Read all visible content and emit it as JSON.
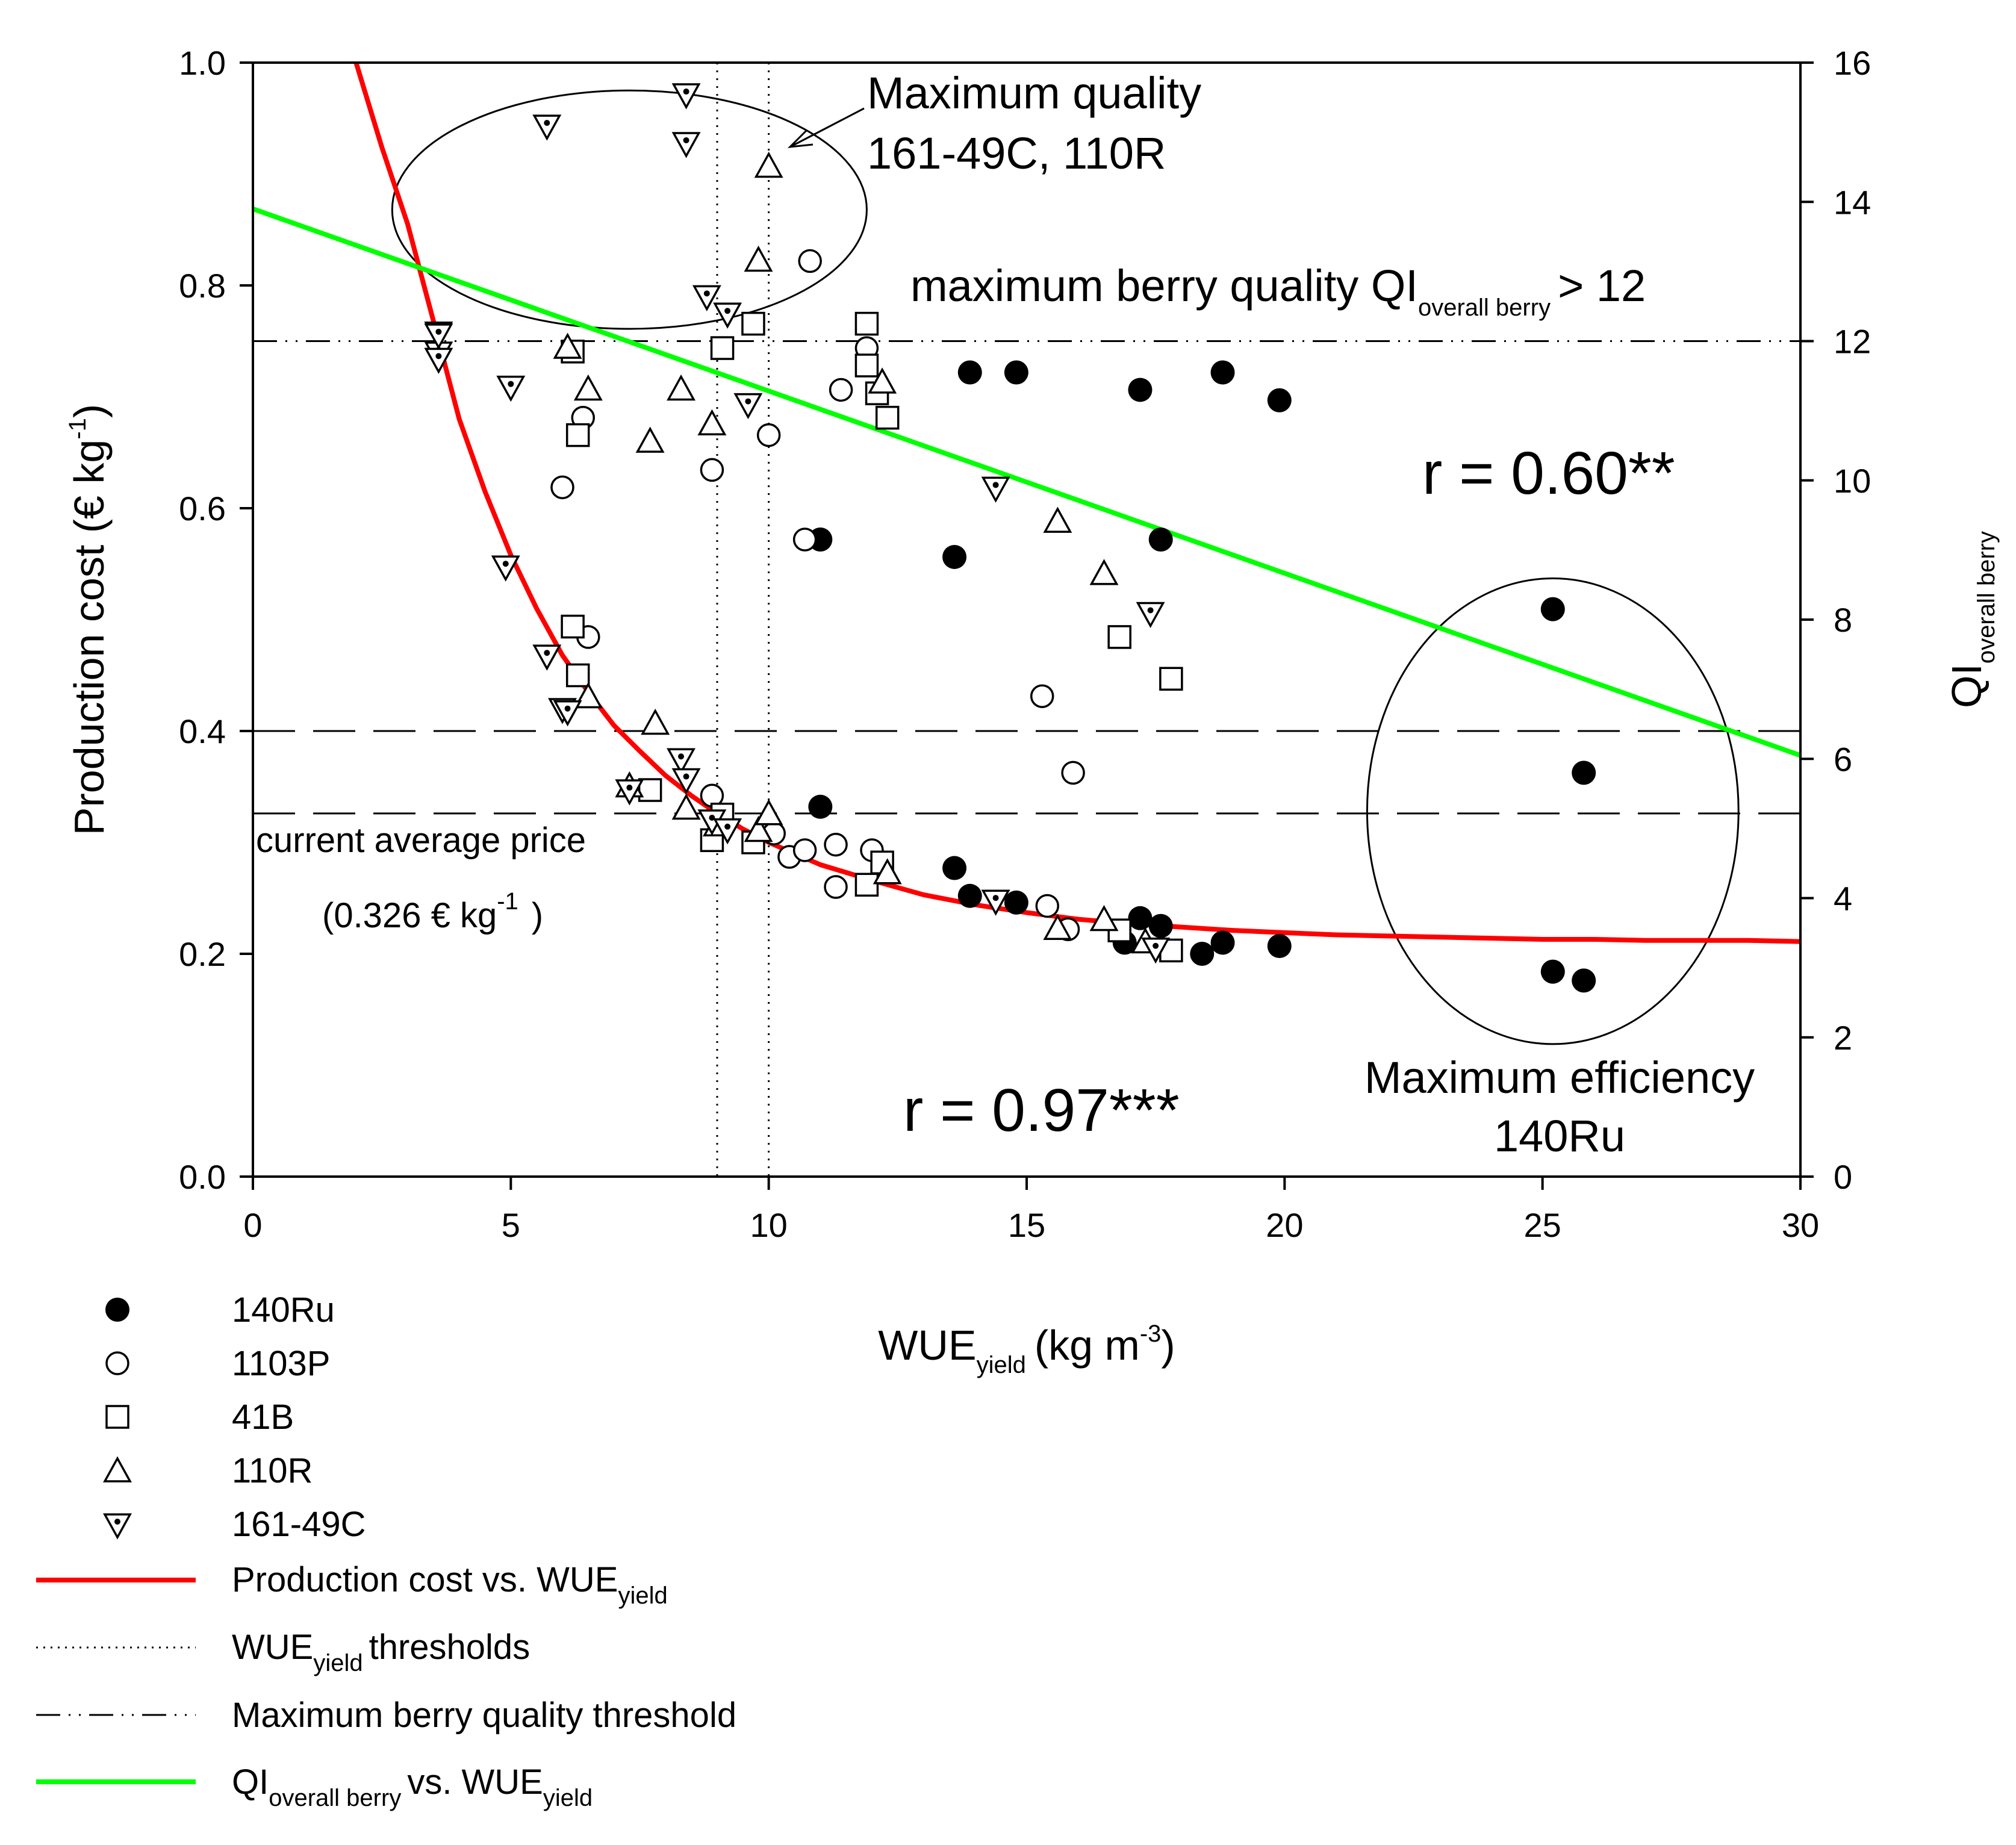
{
  "chart_data": {
    "type": "scatter",
    "x_axis": {
      "label_main": "WUE",
      "label_sub": "yield",
      "label_tail": "(kg m",
      "label_sup": "-3",
      "label_close": ")",
      "range": [
        0,
        30
      ],
      "ticks": [
        "0",
        "5",
        "10",
        "15",
        "20",
        "25",
        "30"
      ]
    },
    "y_axis_left": {
      "label_main": "Production cost (€ kg",
      "label_sup": "-1",
      "label_close": ")",
      "range": [
        0,
        1
      ],
      "ticks": [
        "0.0",
        "0.2",
        "0.4",
        "0.6",
        "0.8",
        "1.0"
      ]
    },
    "y_axis_right": {
      "label_main": "QI",
      "label_sub": "overall berry",
      "range": [
        0,
        16
      ],
      "ticks": [
        "0",
        "2",
        "4",
        "6",
        "8",
        "10",
        "12",
        "14",
        "16"
      ]
    },
    "series": [
      {
        "name": "140Ru",
        "marker": "filled-circle",
        "cost": [
          [
            11.0,
            0.332
          ],
          [
            13.6,
            0.277
          ],
          [
            13.9,
            0.252
          ],
          [
            14.8,
            0.246
          ],
          [
            16.9,
            0.21
          ],
          [
            17.2,
            0.232
          ],
          [
            17.6,
            0.225
          ],
          [
            18.4,
            0.2
          ],
          [
            18.8,
            0.21
          ],
          [
            19.9,
            0.207
          ],
          [
            25.2,
            0.184
          ],
          [
            25.8,
            0.176
          ]
        ],
        "qi": [
          [
            11.0,
            9.15
          ],
          [
            13.6,
            8.9
          ],
          [
            13.9,
            11.55
          ],
          [
            14.8,
            11.55
          ],
          [
            17.2,
            11.3
          ],
          [
            17.6,
            9.15
          ],
          [
            18.8,
            11.55
          ],
          [
            19.9,
            11.15
          ],
          [
            25.2,
            8.15
          ],
          [
            25.8,
            5.8
          ]
        ]
      },
      {
        "name": "1103P",
        "marker": "open-circle",
        "cost": [
          [
            8.9,
            0.342
          ],
          [
            10.1,
            0.308
          ],
          [
            10.4,
            0.287
          ],
          [
            10.7,
            0.293
          ],
          [
            11.3,
            0.298
          ],
          [
            11.3,
            0.26
          ],
          [
            12.0,
            0.293
          ],
          [
            15.4,
            0.243
          ],
          [
            15.8,
            0.222
          ]
        ],
        "qi": [
          [
            6.0,
            9.9
          ],
          [
            6.4,
            10.9
          ],
          [
            6.5,
            7.75
          ],
          [
            8.9,
            10.15
          ],
          [
            10.0,
            10.65
          ],
          [
            10.7,
            9.15
          ],
          [
            10.8,
            13.15
          ],
          [
            11.4,
            11.3
          ],
          [
            11.9,
            11.9
          ],
          [
            15.3,
            6.9
          ],
          [
            15.9,
            5.8
          ]
        ]
      },
      {
        "name": "41B",
        "marker": "open-square",
        "cost": [
          [
            8.9,
            0.302
          ],
          [
            9.1,
            0.325
          ],
          [
            9.7,
            0.3
          ],
          [
            11.9,
            0.262
          ],
          [
            12.2,
            0.282
          ],
          [
            16.8,
            0.221
          ],
          [
            17.8,
            0.203
          ],
          [
            7.7,
            0.347
          ]
        ],
        "qi": [
          [
            6.2,
            11.85
          ],
          [
            6.3,
            10.65
          ],
          [
            6.2,
            7.9
          ],
          [
            6.3,
            7.2
          ],
          [
            9.1,
            11.9
          ],
          [
            9.7,
            12.25
          ],
          [
            11.9,
            12.25
          ],
          [
            11.9,
            11.65
          ],
          [
            12.1,
            11.25
          ],
          [
            12.3,
            10.9
          ],
          [
            16.8,
            7.75
          ],
          [
            17.8,
            7.15
          ]
        ]
      },
      {
        "name": "110R",
        "marker": "open-triangle-up",
        "cost": [
          [
            7.3,
            0.35
          ],
          [
            8.4,
            0.33
          ],
          [
            9.0,
            0.315
          ],
          [
            9.8,
            0.31
          ],
          [
            10.0,
            0.325
          ],
          [
            12.3,
            0.272
          ],
          [
            15.6,
            0.222
          ],
          [
            16.5,
            0.23
          ],
          [
            17.3,
            0.21
          ],
          [
            6.5,
            0.43
          ]
        ],
        "qi": [
          [
            6.1,
            11.9
          ],
          [
            6.5,
            11.3
          ],
          [
            7.8,
            6.5
          ],
          [
            7.7,
            10.55
          ],
          [
            8.3,
            11.3
          ],
          [
            8.9,
            10.8
          ],
          [
            9.8,
            13.15
          ],
          [
            10.0,
            14.5
          ],
          [
            12.2,
            11.4
          ],
          [
            15.6,
            9.4
          ],
          [
            16.5,
            8.65
          ]
        ]
      },
      {
        "name": "161-49C",
        "marker": "open-triangle-down-dot",
        "cost": [
          [
            3.6,
            0.758
          ],
          [
            3.6,
            0.74
          ],
          [
            4.9,
            0.548
          ],
          [
            5.7,
            0.468
          ],
          [
            6.0,
            0.42
          ],
          [
            6.1,
            0.418
          ],
          [
            7.3,
            0.347
          ],
          [
            8.3,
            0.375
          ],
          [
            8.4,
            0.357
          ],
          [
            8.9,
            0.32
          ],
          [
            9.2,
            0.312
          ],
          [
            14.4,
            0.248
          ],
          [
            17.5,
            0.205
          ]
        ],
        "qi": [
          [
            3.6,
            12.1
          ],
          [
            3.6,
            11.75
          ],
          [
            5.0,
            11.35
          ],
          [
            5.7,
            15.1
          ],
          [
            8.4,
            15.55
          ],
          [
            8.4,
            14.85
          ],
          [
            8.8,
            12.65
          ],
          [
            9.2,
            12.4
          ],
          [
            9.6,
            11.1
          ],
          [
            14.4,
            9.9
          ],
          [
            17.4,
            8.1
          ]
        ]
      }
    ],
    "fits": [
      {
        "name": "Production cost vs. WUE",
        "name_sub": "yield",
        "color": "#ff0000",
        "axis": "left",
        "x": [
          2.0,
          2.5,
          3.0,
          3.5,
          4.0,
          4.5,
          5.0,
          5.5,
          6.0,
          6.5,
          7.0,
          7.5,
          8.0,
          8.5,
          9.0,
          9.5,
          10.0,
          11.0,
          12.0,
          13.0,
          14.0,
          15.0,
          16.0,
          17.0,
          18.0,
          19.0,
          20.0,
          21.0,
          22.0,
          23.0,
          24.0,
          25.0,
          26.0,
          27.0,
          28.0,
          29.0,
          30.0
        ],
        "y": [
          1.0,
          0.924,
          0.855,
          0.768,
          0.68,
          0.615,
          0.558,
          0.51,
          0.468,
          0.435,
          0.405,
          0.382,
          0.36,
          0.342,
          0.326,
          0.312,
          0.3,
          0.28,
          0.266,
          0.253,
          0.244,
          0.237,
          0.231,
          0.227,
          0.224,
          0.221,
          0.219,
          0.217,
          0.216,
          0.215,
          0.214,
          0.213,
          0.213,
          0.212,
          0.212,
          0.212,
          0.211
        ]
      },
      {
        "name": "QI",
        "name_sub": "overall berry",
        "name_tail": "vs. WUE",
        "name_tail_sub": "yield",
        "color": "#00ff00",
        "axis": "right",
        "x": [
          0,
          30
        ],
        "y": [
          13.9,
          6.05
        ]
      }
    ],
    "reference_lines": [
      {
        "type": "horizontal",
        "axis": "left",
        "value": 0.4,
        "style": "dashed"
      },
      {
        "type": "horizontal",
        "axis": "left",
        "value": 0.326,
        "style": "dashed"
      },
      {
        "type": "horizontal",
        "axis": "right",
        "value": 12,
        "style": "dash-dot-dot"
      },
      {
        "type": "vertical",
        "value": 9.0,
        "style": "dotted"
      },
      {
        "type": "vertical",
        "value": 10.0,
        "style": "dotted"
      }
    ],
    "ellipses": [
      {
        "cx": 7.3,
        "cy": 0.868,
        "rx": 4.6,
        "ry": 0.107
      },
      {
        "cx": 25.2,
        "cy": 0.328,
        "rx": 3.6,
        "ry": 0.209
      }
    ],
    "annotations": {
      "max_quality_line1": "Maximum quality",
      "max_quality_line2": "161-49C, 110R",
      "berry_quality_main": "maximum berry quality QI",
      "berry_quality_sub": "overall berry",
      "berry_quality_tail": "> 12",
      "r_qi": "r = 0.60**",
      "r_cost": "r = 0.97***",
      "price_line1": "current average price",
      "price_line2_a": "(0.326 € kg",
      "price_line2_sup": "-1",
      "price_line2_b": ")",
      "max_eff_line1": "Maximum efficiency",
      "max_eff_line2": "140Ru"
    },
    "legend": {
      "placement": "bottom-left",
      "items": [
        {
          "label": "140Ru"
        },
        {
          "label": "1103P"
        },
        {
          "label": "41B"
        },
        {
          "label": "110R"
        },
        {
          "label": "161-49C"
        },
        {
          "label": "Production cost vs. WUE",
          "sub": "yield",
          "color": "#ff0000"
        },
        {
          "label": "WUE",
          "sub": "yield",
          "tail": "thresholds"
        },
        {
          "label": "Maximum berry quality threshold"
        },
        {
          "label": "QI",
          "sub": "overall berry",
          "tail": "vs. WUE",
          "tail_sub": "yield",
          "color": "#00ff00"
        }
      ]
    }
  }
}
